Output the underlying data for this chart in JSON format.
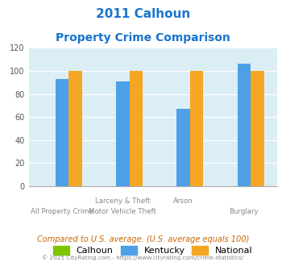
{
  "title_line1": "2011 Calhoun",
  "title_line2": "Property Crime Comparison",
  "title_color": "#1874cd",
  "calhoun_values": [
    0,
    0,
    0,
    0
  ],
  "kentucky_values": [
    93,
    91,
    67,
    106
  ],
  "national_values": [
    100,
    100,
    100,
    100
  ],
  "calhoun_color": "#7dc700",
  "kentucky_color": "#4d9fe8",
  "national_color": "#f5a623",
  "bg_color": "#dceef5",
  "ylim": [
    0,
    120
  ],
  "yticks": [
    0,
    20,
    40,
    60,
    80,
    100,
    120
  ],
  "legend_labels": [
    "Calhoun",
    "Kentucky",
    "National"
  ],
  "label_tops": [
    "",
    "Larceny & Theft",
    "Arson",
    ""
  ],
  "label_bottoms": [
    "All Property Crime",
    "Motor Vehicle Theft",
    "",
    "Burglary"
  ],
  "footnote1": "Compared to U.S. average. (U.S. average equals 100)",
  "footnote2": "© 2025 CityRating.com - https://www.cityrating.com/crime-statistics/",
  "footnote1_color": "#cc6600",
  "footnote2_color": "#888888",
  "bar_width": 0.22,
  "group_positions": [
    0,
    1,
    2,
    3
  ]
}
